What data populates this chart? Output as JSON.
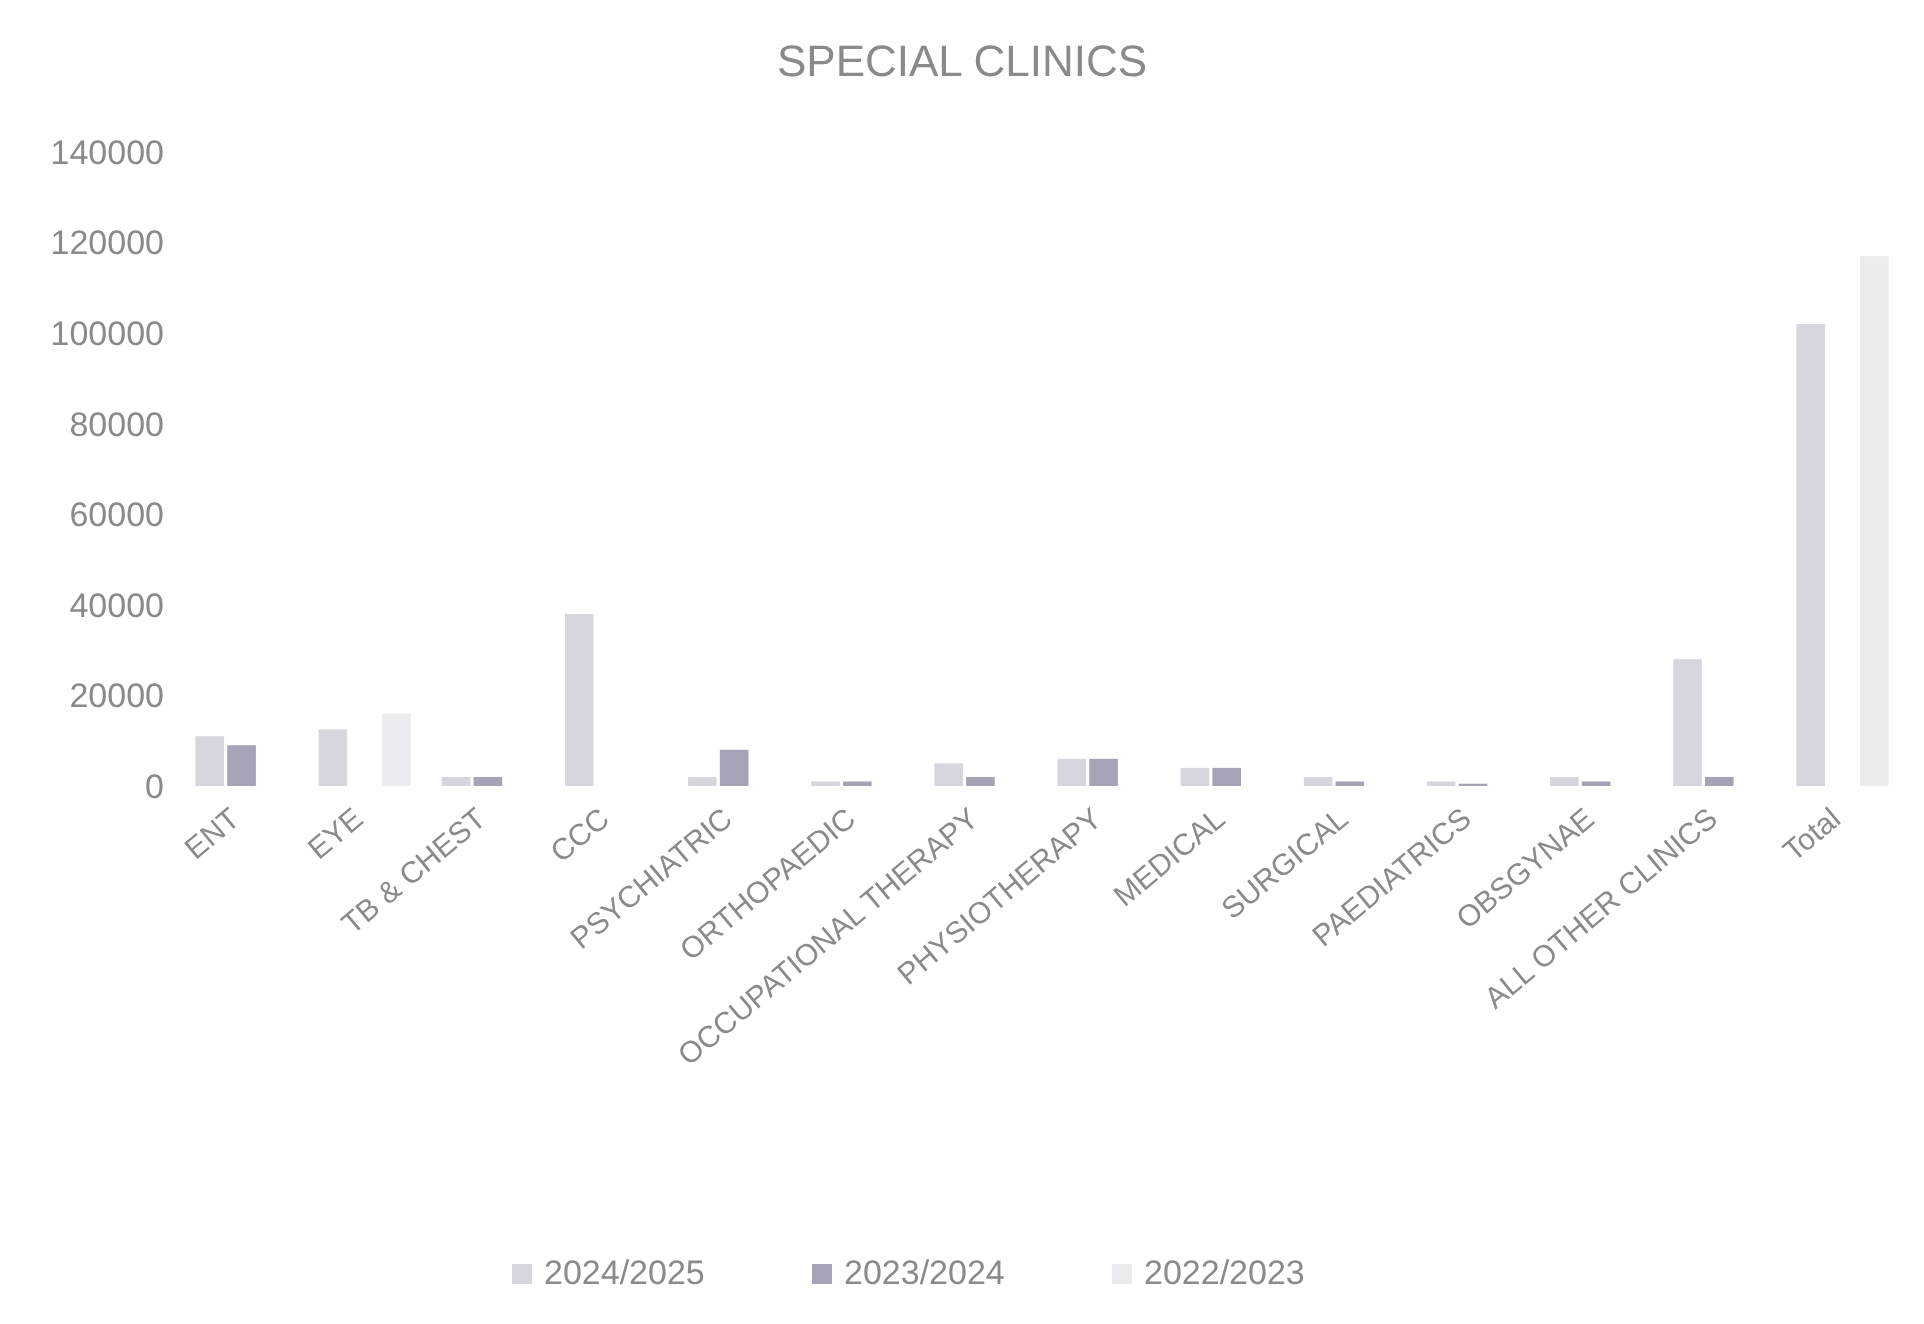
{
  "chart_data": {
    "type": "bar",
    "title": "SPECIAL CLINICS",
    "categories": [
      "ENT",
      "EYE",
      "TB & CHEST",
      "CCC",
      "PSYCHIATRIC",
      "ORTHOPAEDIC",
      "OCCUPATIONAL THERAPY",
      "PHYSIOTHERAPY",
      "MEDICAL",
      "SURGICAL",
      "PAEDIATRICS",
      "OBSGYNAE",
      "ALL OTHER CLINICS",
      "Total"
    ],
    "series": [
      {
        "name": "2024/2025",
        "color": "#d6d6de",
        "values": [
          11000,
          12500,
          2000,
          38000,
          2000,
          1000,
          5000,
          6000,
          4000,
          2000,
          1000,
          2000,
          28000,
          102000
        ]
      },
      {
        "name": "2023/2024",
        "color": "#a4a4b6",
        "values": [
          9000,
          null,
          2000,
          null,
          8000,
          1000,
          2000,
          6000,
          4000,
          1000,
          500,
          1000,
          2000,
          null
        ]
      },
      {
        "name": "2022/2023",
        "color": "#ebebf0",
        "values": [
          null,
          16000,
          null,
          null,
          null,
          null,
          null,
          null,
          null,
          null,
          null,
          null,
          null,
          117000
        ]
      }
    ],
    "ylim": [
      0,
      140000
    ],
    "yticks": [
      0,
      20000,
      40000,
      60000,
      80000,
      100000,
      120000,
      140000
    ],
    "grid": false,
    "legend": "bottom"
  }
}
